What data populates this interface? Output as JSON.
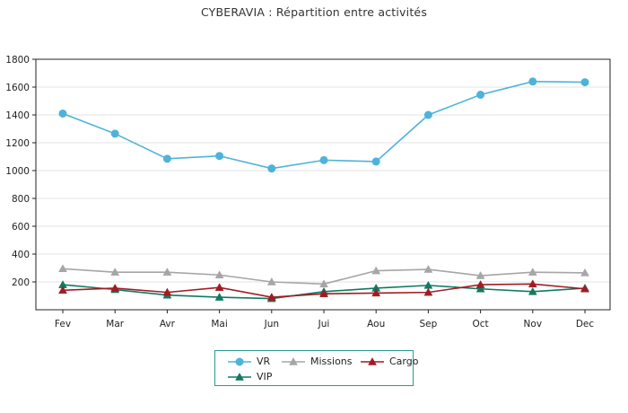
{
  "title": "CYBERAVIA : Répartition entre activités",
  "chart_data": {
    "type": "line",
    "title": "CYBERAVIA : Répartition entre activités",
    "xlabel": "",
    "ylabel": "",
    "categories": [
      "Fev",
      "Mar",
      "Avr",
      "Mai",
      "Jun",
      "Jui",
      "Aou",
      "Sep",
      "Oct",
      "Nov",
      "Dec"
    ],
    "ylim": [
      0,
      1800
    ],
    "yticks": [
      200,
      400,
      600,
      800,
      1000,
      1200,
      1400,
      1600,
      1800
    ],
    "grid": true,
    "legend_position": "bottom",
    "series": [
      {
        "name": "VR",
        "color": "#4fb3d9",
        "marker": "circle",
        "values": [
          1410,
          1265,
          1085,
          1105,
          1015,
          1075,
          1065,
          1400,
          1545,
          1640,
          1635
        ]
      },
      {
        "name": "Missions",
        "color": "#a6a6a6",
        "marker": "triangle",
        "values": [
          295,
          270,
          270,
          250,
          200,
          185,
          280,
          290,
          245,
          270,
          265
        ]
      },
      {
        "name": "Cargo",
        "color": "#a01c22",
        "marker": "triangle",
        "values": [
          140,
          155,
          125,
          160,
          90,
          115,
          120,
          125,
          180,
          185,
          150
        ]
      },
      {
        "name": "VIP",
        "color": "#0f7a62",
        "marker": "triangle",
        "values": [
          180,
          145,
          105,
          90,
          80,
          130,
          155,
          175,
          150,
          130,
          155
        ]
      }
    ]
  }
}
